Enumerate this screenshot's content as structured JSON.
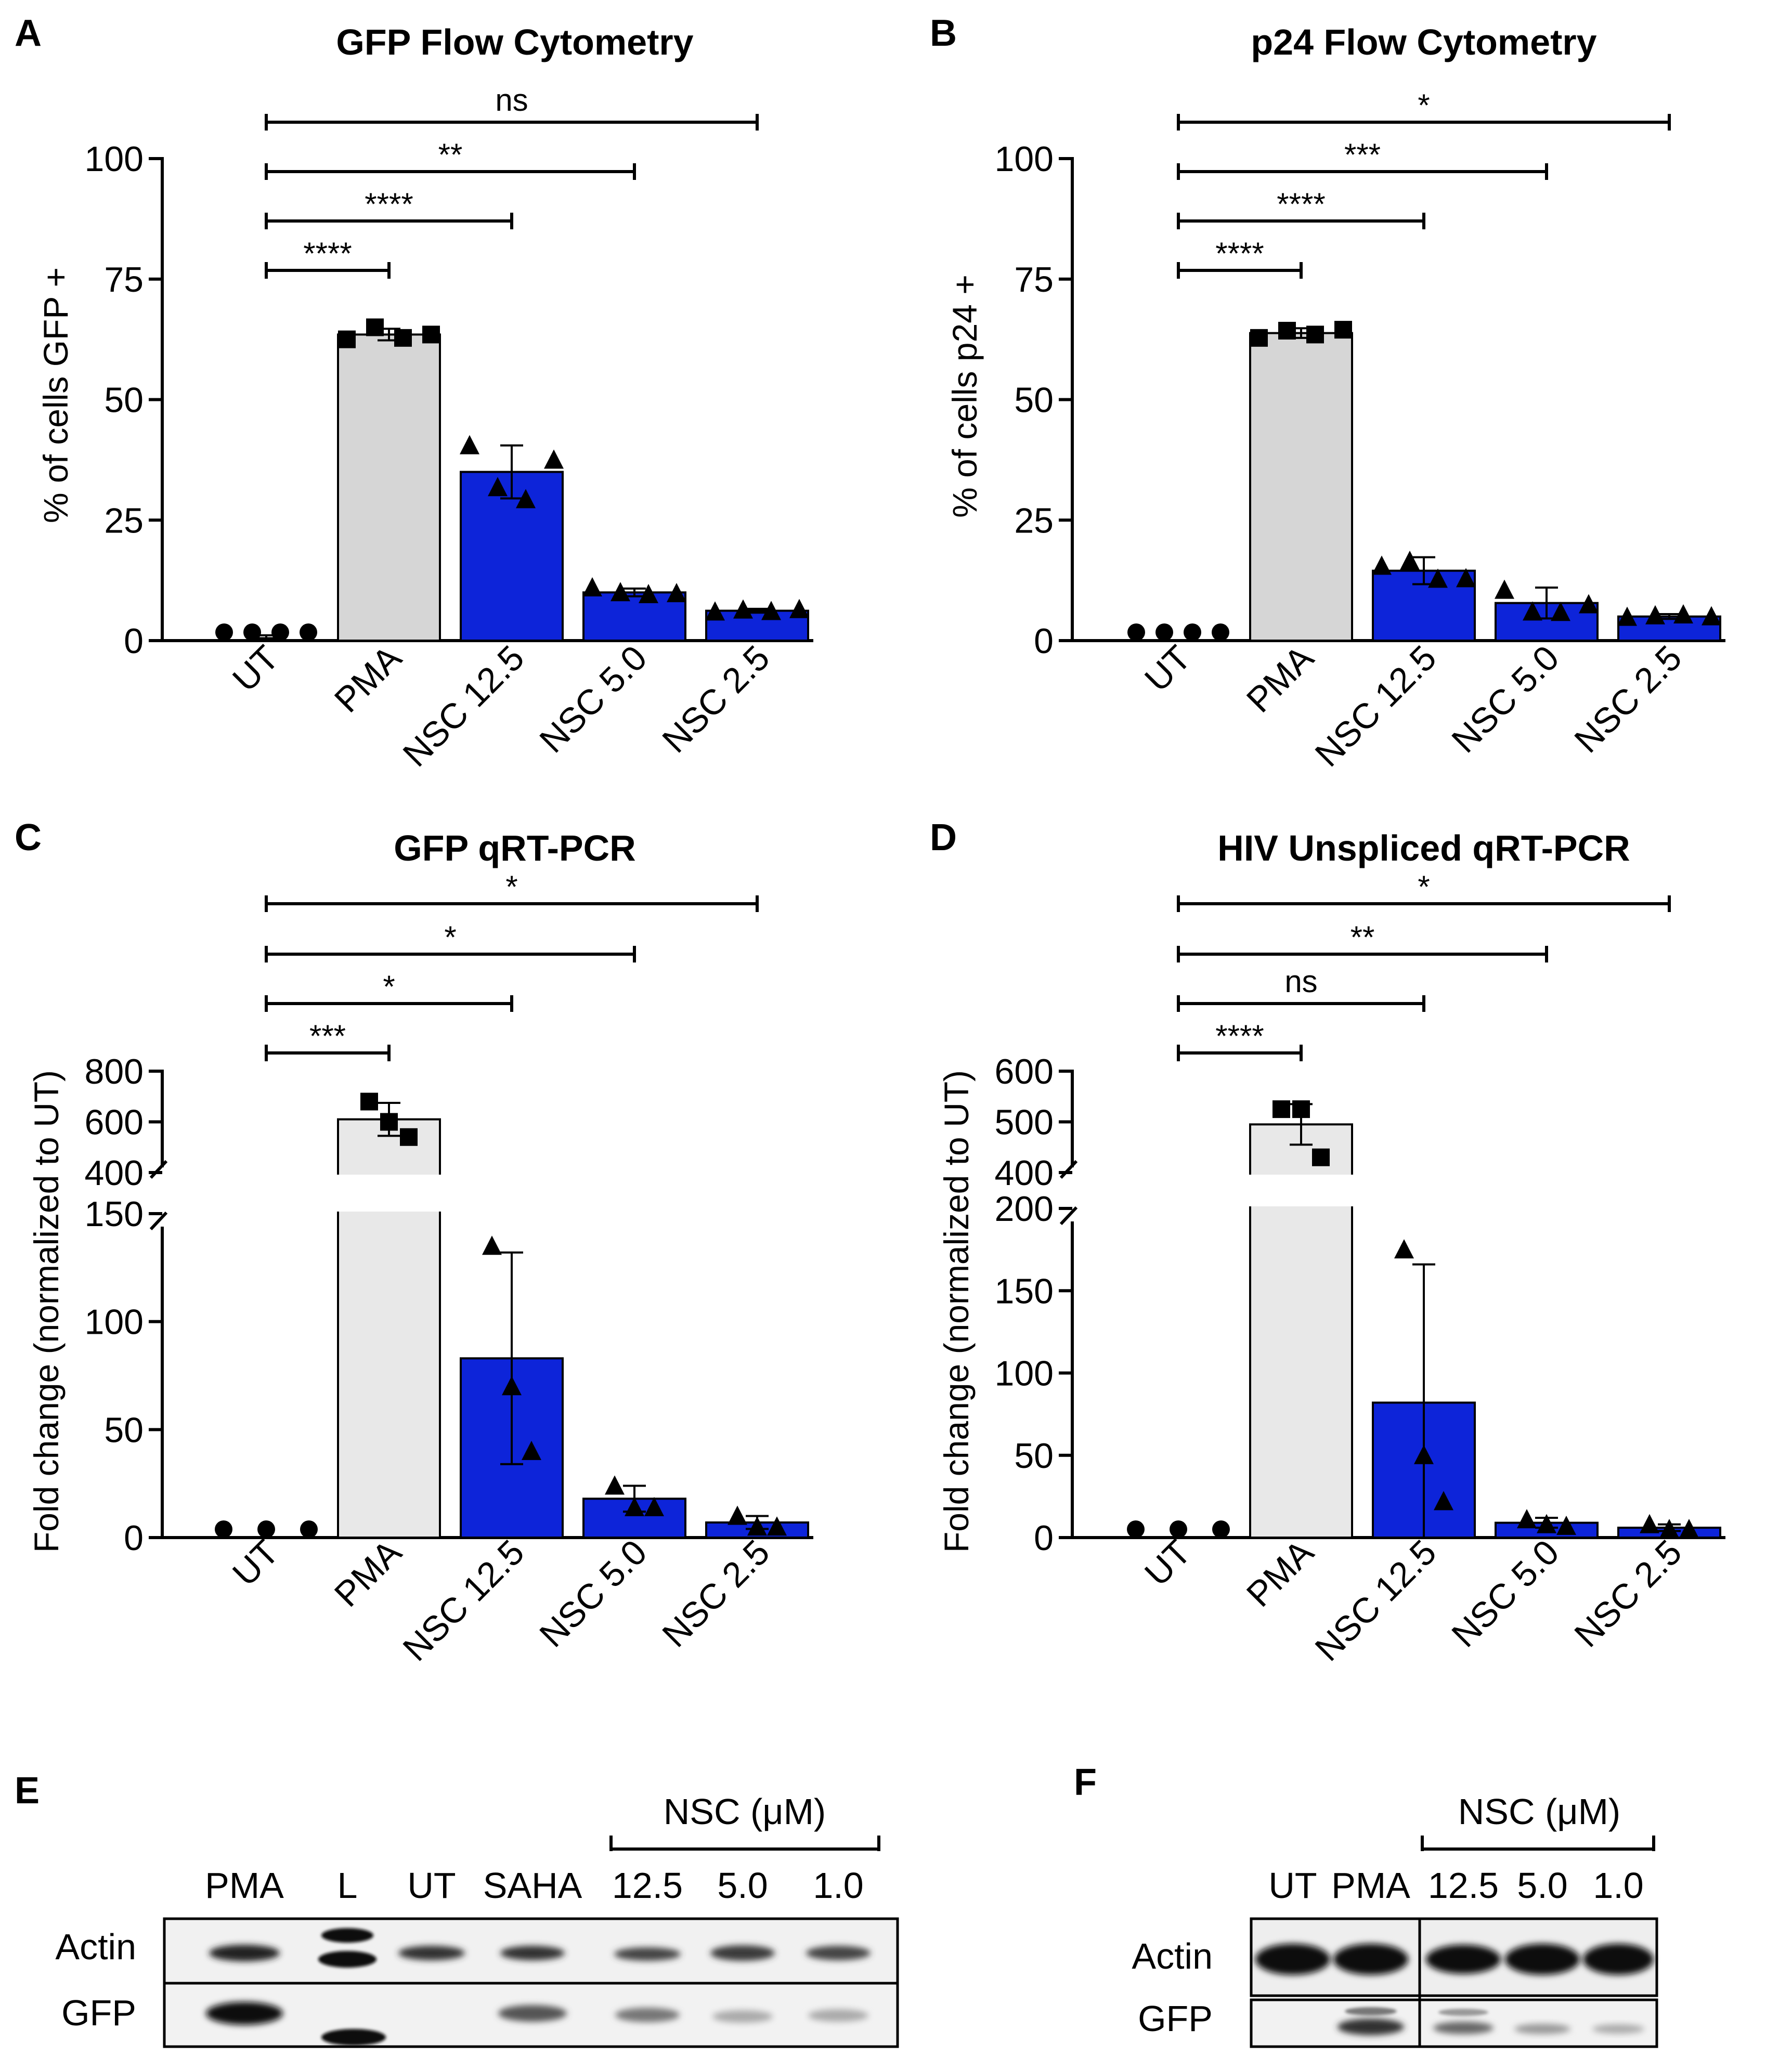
{
  "colors": {
    "pma": "#d6d6d6",
    "pma_light": "#e8e8e8",
    "nsc": "#0d24d9",
    "axis": "#000000"
  },
  "categories": [
    "UT",
    "PMA",
    "NSC 12.5",
    "NSC 5.0",
    "NSC 2.5"
  ],
  "chart_data": [
    {
      "panel": "A",
      "type": "bar",
      "title": "GFP Flow Cytometry",
      "ylabel": "% of cells GFP +",
      "ylim": [
        0,
        100
      ],
      "yticks": [
        0,
        25,
        50,
        75,
        100
      ],
      "categories": [
        "UT",
        "PMA",
        "NSC 12.5",
        "NSC 5.0",
        "NSC 2.5"
      ],
      "values": [
        0.8,
        63.5,
        35,
        10,
        6.2
      ],
      "errors": [
        0.3,
        1.2,
        5.5,
        0.8,
        0.4
      ],
      "markers": [
        "circle",
        "square",
        "triangle",
        "triangle",
        "triangle"
      ],
      "points": [
        [
          0.7,
          0.8,
          0.9,
          1.0
        ],
        [
          62.5,
          65.0,
          62.8,
          63.5
        ],
        [
          40.5,
          31.8,
          29.3,
          37.5
        ],
        [
          11.0,
          10.0,
          9.6,
          9.8
        ],
        [
          6.0,
          6.4,
          6.1,
          6.5
        ]
      ],
      "significance": [
        {
          "to": "PMA",
          "label": "****"
        },
        {
          "to": "NSC 12.5",
          "label": "****"
        },
        {
          "to": "NSC 5.0",
          "label": "**"
        },
        {
          "to": "NSC 2.5",
          "label": "ns"
        }
      ]
    },
    {
      "panel": "B",
      "type": "bar",
      "title": "p24 Flow Cytometry",
      "ylabel": "% of cells p24 +",
      "ylim": [
        0,
        100
      ],
      "yticks": [
        0,
        25,
        50,
        75,
        100
      ],
      "categories": [
        "UT",
        "PMA",
        "NSC 12.5",
        "NSC 5.0",
        "NSC 2.5"
      ],
      "values": [
        1.0,
        63.8,
        14.5,
        7.8,
        5.0
      ],
      "errors": [
        0.2,
        1.0,
        2.8,
        3.2,
        0.5
      ],
      "markers": [
        "circle",
        "square",
        "triangle",
        "triangle",
        "triangle"
      ],
      "points": [
        [
          1.0,
          1.0,
          1.1,
          1.2
        ],
        [
          62.8,
          64.3,
          63.5,
          64.5
        ],
        [
          15.5,
          16.5,
          12.8,
          12.9
        ],
        [
          10.5,
          6.0,
          5.9,
          7.5
        ],
        [
          4.9,
          5.2,
          5.4,
          5.0
        ]
      ],
      "significance": [
        {
          "to": "PMA",
          "label": "****"
        },
        {
          "to": "NSC 12.5",
          "label": "****"
        },
        {
          "to": "NSC 5.0",
          "label": "***"
        },
        {
          "to": "NSC 2.5",
          "label": "*"
        }
      ]
    },
    {
      "panel": "C",
      "type": "bar",
      "title": "GFP qRT-PCR",
      "ylabel": "Fold change (normalized to UT)",
      "ylim": [
        0,
        800
      ],
      "y_break": [
        150,
        400
      ],
      "yticks_lower": [
        0,
        50,
        100,
        150
      ],
      "yticks_upper": [
        400,
        600,
        800
      ],
      "categories": [
        "UT",
        "PMA",
        "NSC 12.5",
        "NSC 5.0",
        "NSC 2.5"
      ],
      "values": [
        1,
        610,
        83,
        18,
        7
      ],
      "errors": [
        0,
        65,
        49,
        6,
        3
      ],
      "markers": [
        "circle",
        "square",
        "triangle",
        "triangle",
        "triangle"
      ],
      "points": [
        [
          1,
          1,
          1
        ],
        [
          680,
          600,
          540
        ],
        [
          135,
          70,
          40
        ],
        [
          24,
          14,
          14
        ],
        [
          10,
          5,
          5
        ]
      ],
      "significance": [
        {
          "to": "PMA",
          "label": "***"
        },
        {
          "to": "NSC 12.5",
          "label": "*"
        },
        {
          "to": "NSC 5.0",
          "label": "*"
        },
        {
          "to": "NSC 2.5",
          "label": "*"
        }
      ]
    },
    {
      "panel": "D",
      "type": "bar",
      "title": "HIV Unspliced qRT-PCR",
      "ylabel": "Fold change (normalized to UT)",
      "ylim": [
        0,
        600
      ],
      "y_break": [
        200,
        400
      ],
      "yticks_lower": [
        0,
        50,
        100,
        150,
        200
      ],
      "yticks_upper": [
        400,
        500,
        600
      ],
      "categories": [
        "UT",
        "PMA",
        "NSC 12.5",
        "NSC 5.0",
        "NSC 2.5"
      ],
      "values": [
        1,
        495,
        82,
        9,
        6
      ],
      "errors": [
        0,
        40,
        84,
        3,
        2
      ],
      "markers": [
        "circle",
        "square",
        "triangle",
        "triangle",
        "triangle"
      ],
      "points": [
        [
          1,
          1,
          1
        ],
        [
          525,
          525,
          430
        ],
        [
          175,
          50,
          22
        ],
        [
          11,
          8,
          7
        ],
        [
          8,
          5,
          5
        ]
      ],
      "significance": [
        {
          "to": "PMA",
          "label": "****"
        },
        {
          "to": "NSC 12.5",
          "label": "ns"
        },
        {
          "to": "NSC 5.0",
          "label": "**"
        },
        {
          "to": "NSC 2.5",
          "label": "*"
        }
      ]
    }
  ],
  "panels": {
    "A": {
      "letter": "A",
      "title": "GFP Flow Cytometry",
      "ylabel": "% of cells GFP +"
    },
    "B": {
      "letter": "B",
      "title": "p24 Flow Cytometry",
      "ylabel": "% of cells p24 +"
    },
    "C": {
      "letter": "C",
      "title": "GFP qRT-PCR",
      "ylabel": "Fold change (normalized to UT)"
    },
    "D": {
      "letter": "D",
      "title": "HIV Unspliced qRT-PCR",
      "ylabel": "Fold change (normalized to UT)"
    }
  },
  "blots": {
    "E": {
      "letter": "E",
      "group_label": "NSC (μM)",
      "lanes": [
        "PMA",
        "L",
        "UT",
        "SAHA",
        "12.5",
        "5.0",
        "1.0"
      ],
      "rows": [
        "Actin",
        "GFP"
      ]
    },
    "F": {
      "letter": "F",
      "group_label": "NSC (μM)",
      "lanes": [
        "UT",
        "PMA",
        "12.5",
        "5.0",
        "1.0"
      ],
      "rows": [
        "Actin",
        "GFP"
      ]
    }
  }
}
